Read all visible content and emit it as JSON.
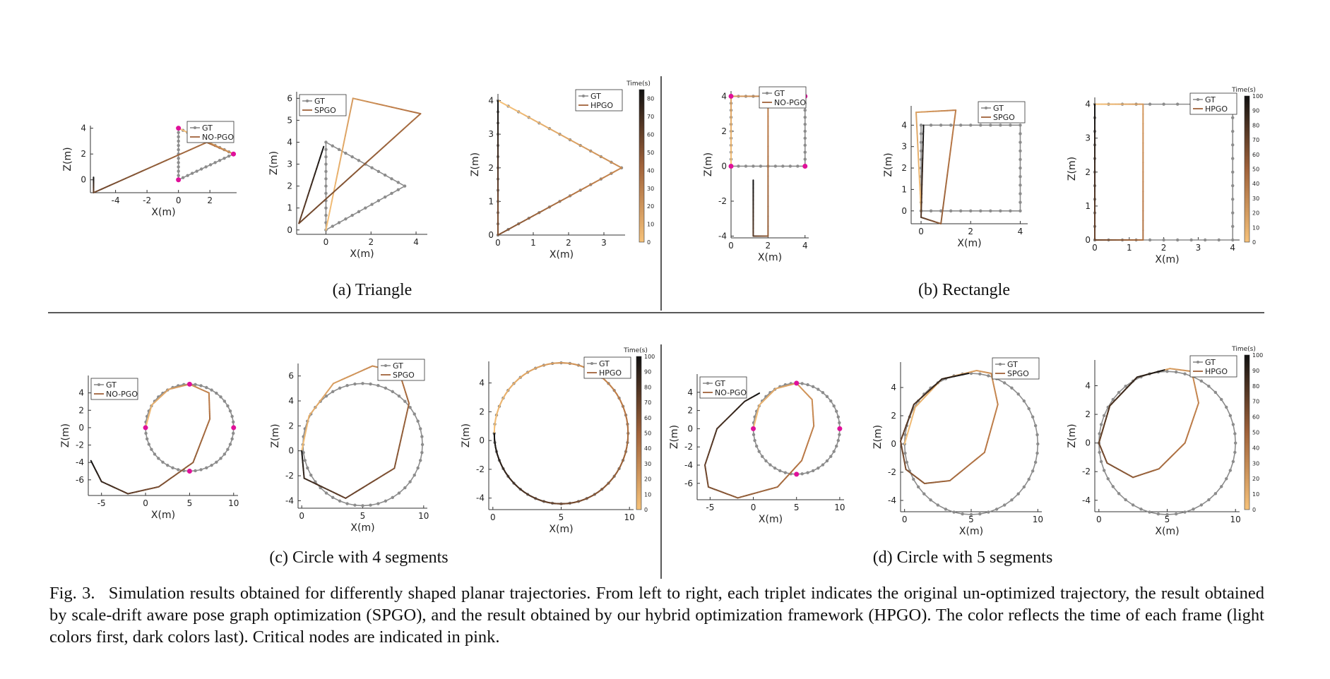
{
  "figure": {
    "label": "Fig. 3.",
    "caption": "Simulation results obtained for differently shaped planar trajectories. From left to right, each triplet indicates the original un-optimized trajectory, the result obtained by scale-drift aware pose graph optimization (SPGO), and the result obtained by our hybrid optimization framework (HPGO). The color reflects the time of each frame (light colors first, dark colors last). Critical nodes are indicated in pink.",
    "subfigures": [
      {
        "id": "a",
        "caption": "(a)  Triangle"
      },
      {
        "id": "b",
        "caption": "(b)  Rectangle"
      },
      {
        "id": "c",
        "caption": "(c)  Circle with 4 segments"
      },
      {
        "id": "d",
        "caption": "(d)  Circle with 5 segments"
      }
    ],
    "colors": {
      "gt": "#8c8c8c",
      "critical": "#e0109a",
      "light": "#f6c27a",
      "dark": "#151515",
      "axis": "#333333"
    }
  },
  "chart_data": [
    {
      "type": "line",
      "panel": "a1",
      "shape": "triangle",
      "xlabel": "X(m)",
      "ylabel": "Z(m)",
      "xlim": [
        -5.6,
        3.7
      ],
      "ylim": [
        -1,
        4.2
      ],
      "xticks": [
        -4,
        -2,
        0,
        2
      ],
      "yticks": [
        0,
        2,
        4
      ],
      "legend": [
        "GT",
        "NO-PGO"
      ],
      "legend_position": "top-right",
      "gt": [
        [
          0,
          0
        ],
        [
          3.5,
          2
        ],
        [
          0,
          4
        ],
        [
          0,
          0
        ]
      ],
      "est": [
        [
          0,
          4
        ],
        [
          3.5,
          2
        ],
        [
          1.8,
          2.9
        ],
        [
          -5.4,
          -1
        ],
        [
          -5.4,
          0.2
        ]
      ],
      "critical": [
        [
          0,
          0
        ],
        [
          3.5,
          2
        ],
        [
          0,
          4
        ]
      ]
    },
    {
      "type": "line",
      "panel": "a2",
      "shape": "triangle",
      "xlabel": "X(m)",
      "ylabel": "Z(m)",
      "xlim": [
        -1.3,
        4.5
      ],
      "ylim": [
        -0.2,
        6.3
      ],
      "xticks": [
        0,
        2,
        4
      ],
      "yticks": [
        0,
        1,
        2,
        3,
        4,
        5,
        6
      ],
      "legend": [
        "GT",
        "SPGO"
      ],
      "legend_position": "top-left",
      "gt": [
        [
          0,
          0
        ],
        [
          3.5,
          2
        ],
        [
          0,
          4
        ],
        [
          0,
          0
        ]
      ],
      "est": [
        [
          0,
          0
        ],
        [
          1.2,
          6
        ],
        [
          4.2,
          5.3
        ],
        [
          -1.2,
          0.3
        ],
        [
          -0.1,
          3.8
        ]
      ],
      "critical": []
    },
    {
      "type": "line",
      "panel": "a3",
      "shape": "triangle",
      "xlabel": "X(m)",
      "ylabel": "Z(m)",
      "xlim": [
        0,
        3.6
      ],
      "ylim": [
        0,
        4.2
      ],
      "xticks": [
        0,
        1,
        2,
        3
      ],
      "yticks": [
        0,
        1,
        2,
        3,
        4
      ],
      "legend": [
        "GT",
        "HPGO"
      ],
      "legend_position": "top-right",
      "gt": [
        [
          0,
          0
        ],
        [
          3.5,
          2
        ],
        [
          0,
          4
        ],
        [
          0,
          0
        ]
      ],
      "est": [
        [
          0,
          4
        ],
        [
          3.5,
          2
        ],
        [
          0,
          0
        ],
        [
          0,
          4
        ]
      ],
      "critical": [],
      "colorbar": {
        "label": "Time(s)",
        "ticks": [
          0,
          10,
          20,
          30,
          40,
          50,
          60,
          70,
          80
        ],
        "max": 85
      }
    },
    {
      "type": "line",
      "panel": "b1",
      "shape": "rectangle",
      "xlabel": "X(m)",
      "ylabel": "Z(m)",
      "xlim": [
        0,
        4.2
      ],
      "ylim": [
        -4.1,
        4.3
      ],
      "xticks": [
        0,
        2,
        4
      ],
      "yticks": [
        -4,
        -2,
        0,
        2,
        4
      ],
      "legend": [
        "GT",
        "NO-PGO"
      ],
      "legend_position": "top-right",
      "gt": [
        [
          0,
          0
        ],
        [
          4,
          0
        ],
        [
          4,
          4
        ],
        [
          0,
          4
        ],
        [
          0,
          0
        ]
      ],
      "est": [
        [
          0,
          0
        ],
        [
          0,
          4
        ],
        [
          2,
          4
        ],
        [
          2,
          -4
        ],
        [
          1.2,
          -4
        ],
        [
          1.2,
          -0.8
        ]
      ],
      "critical": [
        [
          0,
          0
        ],
        [
          4,
          0
        ],
        [
          4,
          4
        ],
        [
          0,
          4
        ]
      ]
    },
    {
      "type": "line",
      "panel": "b2",
      "shape": "rectangle",
      "xlabel": "X(m)",
      "ylabel": "Z(m)",
      "xlim": [
        -0.4,
        4.3
      ],
      "ylim": [
        -0.6,
        4.9
      ],
      "xticks": [
        0,
        2,
        4
      ],
      "yticks": [
        0,
        1,
        2,
        3,
        4
      ],
      "legend": [
        "GT",
        "SPGO"
      ],
      "legend_position": "top-right",
      "gt": [
        [
          0,
          0
        ],
        [
          4,
          0
        ],
        [
          4,
          4
        ],
        [
          0,
          4
        ],
        [
          0,
          0
        ]
      ],
      "est": [
        [
          0,
          0
        ],
        [
          -0.2,
          4.6
        ],
        [
          1.4,
          4.7
        ],
        [
          0.8,
          -0.6
        ],
        [
          0,
          -0.3
        ],
        [
          0.1,
          4
        ]
      ],
      "critical": []
    },
    {
      "type": "line",
      "panel": "b3",
      "shape": "rectangle",
      "xlabel": "X(m)",
      "ylabel": "Z(m)",
      "xlim": [
        0,
        4.2
      ],
      "ylim": [
        0,
        4.2
      ],
      "xticks": [
        0,
        1,
        2,
        3,
        4
      ],
      "yticks": [
        0,
        1,
        2,
        3,
        4
      ],
      "legend": [
        "GT",
        "HPGO"
      ],
      "legend_position": "top-right",
      "gt": [
        [
          0,
          0
        ],
        [
          4,
          0
        ],
        [
          4,
          4
        ],
        [
          0,
          4
        ],
        [
          0,
          0
        ]
      ],
      "est": [
        [
          0,
          4
        ],
        [
          1.4,
          4
        ],
        [
          1.4,
          0
        ],
        [
          0,
          0
        ],
        [
          0,
          4
        ]
      ],
      "critical": [],
      "colorbar": {
        "label": "Time(s)",
        "ticks": [
          0,
          10,
          20,
          30,
          40,
          50,
          60,
          70,
          80,
          90,
          100
        ],
        "max": 100
      }
    },
    {
      "type": "line",
      "panel": "c1",
      "shape": "circle",
      "segments": 4,
      "xlabel": "X(m)",
      "ylabel": "Z(m)",
      "xlim": [
        -6.5,
        10.5
      ],
      "ylim": [
        -7.8,
        6
      ],
      "xticks": [
        -5,
        0,
        5,
        10
      ],
      "yticks": [
        -6,
        -4,
        -2,
        0,
        2,
        4
      ],
      "legend": [
        "GT",
        "NO-PGO"
      ],
      "legend_position": "top-left",
      "circle": {
        "cx": 5,
        "cy": 0,
        "r": 5
      },
      "est": [
        [
          0,
          0
        ],
        [
          0.7,
          2.6
        ],
        [
          2.6,
          4.4
        ],
        [
          5,
          5
        ],
        [
          7.2,
          4
        ],
        [
          7.3,
          1
        ],
        [
          5.4,
          -4
        ],
        [
          1.5,
          -6.8
        ],
        [
          -2,
          -7.6
        ],
        [
          -5,
          -6.2
        ],
        [
          -6.2,
          -3.8
        ]
      ],
      "critical": [
        [
          5,
          5
        ],
        [
          10,
          0
        ],
        [
          5,
          -5
        ],
        [
          0,
          0
        ]
      ]
    },
    {
      "type": "line",
      "panel": "c2",
      "shape": "circle",
      "segments": 4,
      "xlabel": "X(m)",
      "ylabel": "Z(m)",
      "xlim": [
        -0.3,
        10.3
      ],
      "ylim": [
        -4.6,
        7
      ],
      "xticks": [
        0,
        5,
        10
      ],
      "yticks": [
        -4,
        -2,
        0,
        2,
        4,
        6
      ],
      "legend": [
        "GT",
        "SPGO"
      ],
      "legend_position": "top-right",
      "circle": {
        "cx": 5,
        "cy": 0.5,
        "r": 4.9
      },
      "est": [
        [
          0,
          0
        ],
        [
          0.6,
          2.8
        ],
        [
          2.6,
          5.4
        ],
        [
          5.8,
          6.8
        ],
        [
          8,
          6.3
        ],
        [
          8.8,
          3.8
        ],
        [
          7.6,
          -1.4
        ],
        [
          3.6,
          -3.8
        ],
        [
          0.2,
          -2.2
        ],
        [
          0,
          0
        ]
      ],
      "critical": []
    },
    {
      "type": "line",
      "panel": "c3",
      "shape": "circle",
      "segments": 4,
      "xlabel": "X(m)",
      "ylabel": "Z(m)",
      "xlim": [
        -0.3,
        10.3
      ],
      "ylim": [
        -4.8,
        5.5
      ],
      "xticks": [
        0,
        5,
        10
      ],
      "yticks": [
        -4,
        -2,
        0,
        2,
        4
      ],
      "legend": [
        "GT",
        "HPGO"
      ],
      "legend_position": "top-right",
      "circle": {
        "cx": 5,
        "cy": 0.5,
        "r": 4.9
      },
      "est": [],
      "critical": [],
      "colorbar": {
        "label": "Time(s)",
        "ticks": [
          0,
          10,
          20,
          30,
          40,
          50,
          60,
          70,
          80,
          90,
          100
        ],
        "max": 100
      }
    },
    {
      "type": "line",
      "panel": "d1",
      "shape": "circle",
      "segments": 5,
      "xlabel": "X(m)",
      "ylabel": "Z(m)",
      "xlim": [
        -6.5,
        10.5
      ],
      "ylim": [
        -7.8,
        6
      ],
      "xticks": [
        -5,
        0,
        5,
        10
      ],
      "yticks": [
        -6,
        -4,
        -2,
        0,
        2,
        4
      ],
      "legend": [
        "GT",
        "NO-PGO"
      ],
      "legend_position": "top-left",
      "circle": {
        "cx": 5,
        "cy": 0,
        "r": 5
      },
      "est": [
        [
          0,
          0
        ],
        [
          0.7,
          2.6
        ],
        [
          2.6,
          4.4
        ],
        [
          5,
          5
        ],
        [
          6.8,
          3.2
        ],
        [
          7,
          0.3
        ],
        [
          5.6,
          -3.5
        ],
        [
          2.8,
          -6.4
        ],
        [
          -1.8,
          -7.6
        ],
        [
          -5.2,
          -6.4
        ],
        [
          -5.6,
          -4
        ],
        [
          -4.2,
          0
        ],
        [
          -1,
          3
        ],
        [
          0.7,
          3.9
        ]
      ],
      "critical": [
        [
          5,
          5
        ],
        [
          10,
          0
        ],
        [
          5,
          -5
        ],
        [
          0,
          0
        ]
      ]
    },
    {
      "type": "line",
      "panel": "d2",
      "shape": "circle",
      "segments": 5,
      "xlabel": "X(m)",
      "ylabel": "Z(m)",
      "xlim": [
        -0.3,
        10.3
      ],
      "ylim": [
        -4.8,
        5.8
      ],
      "xticks": [
        0,
        5,
        10
      ],
      "yticks": [
        -4,
        -2,
        0,
        2,
        4
      ],
      "legend": [
        "GT",
        "SPGO"
      ],
      "legend_position": "top-right",
      "circle": {
        "cx": 5,
        "cy": 0,
        "r": 5
      },
      "est": [
        [
          0,
          0
        ],
        [
          0.8,
          2.6
        ],
        [
          2.8,
          4.6
        ],
        [
          5.4,
          5.2
        ],
        [
          6.5,
          5
        ],
        [
          7,
          2.8
        ],
        [
          6,
          -0.6
        ],
        [
          3.4,
          -2.6
        ],
        [
          1.5,
          -2.8
        ],
        [
          0.1,
          -1.8
        ],
        [
          -0.3,
          0.2
        ],
        [
          0.7,
          2.8
        ],
        [
          2.8,
          4.6
        ],
        [
          4.8,
          5
        ]
      ],
      "critical": []
    },
    {
      "type": "line",
      "panel": "d3",
      "shape": "circle",
      "segments": 5,
      "xlabel": "X(m)",
      "ylabel": "Z(m)",
      "xlim": [
        -0.3,
        10.3
      ],
      "ylim": [
        -4.8,
        5.8
      ],
      "xticks": [
        0,
        5,
        10
      ],
      "yticks": [
        -4,
        -2,
        0,
        2,
        4
      ],
      "legend": [
        "GT",
        "HPGO"
      ],
      "legend_position": "top-right",
      "circle": {
        "cx": 5,
        "cy": 0,
        "r": 5
      },
      "est": [
        [
          0,
          0
        ],
        [
          0.8,
          2.6
        ],
        [
          2.8,
          4.6
        ],
        [
          5.2,
          5.2
        ],
        [
          6.8,
          5
        ],
        [
          7.3,
          2.8
        ],
        [
          6.3,
          0
        ],
        [
          4.4,
          -1.8
        ],
        [
          2.5,
          -2.4
        ],
        [
          0.6,
          -1.4
        ],
        [
          0,
          0
        ],
        [
          0.8,
          2.6
        ],
        [
          2.8,
          4.6
        ],
        [
          4.8,
          5.1
        ]
      ],
      "critical": [],
      "colorbar": {
        "label": "Time(s)",
        "ticks": [
          0,
          10,
          20,
          30,
          40,
          50,
          60,
          70,
          80,
          90,
          100
        ],
        "max": 100
      }
    }
  ]
}
